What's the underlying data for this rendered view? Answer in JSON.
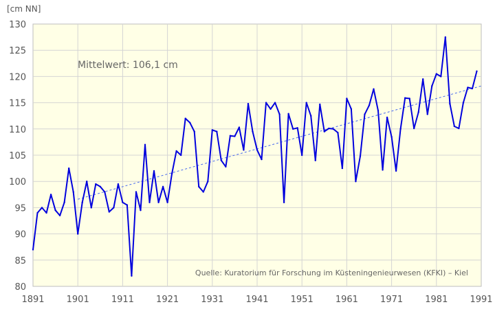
{
  "chart_data": {
    "type": "line",
    "unit_label": "[cm NN]",
    "annotation": "Mittelwert: 106,1 cm",
    "source": "Quelle: Kuratorium für Forschung im Küsteningenieurwesen (KFKI) – Kiel",
    "xlim": [
      1891,
      1991
    ],
    "ylim": [
      80,
      130
    ],
    "x_ticks": [
      1891,
      1901,
      1911,
      1921,
      1931,
      1941,
      1951,
      1961,
      1971,
      1981,
      1991
    ],
    "y_ticks": [
      80,
      85,
      90,
      95,
      100,
      105,
      110,
      115,
      120,
      125,
      130
    ],
    "grid": true,
    "colors": {
      "line": "#0000dd",
      "trend": "#4466ee",
      "plot_background": "#ffffe6",
      "grid": "#d4d4d4"
    },
    "series": [
      {
        "x": [
          1891,
          1892,
          1893,
          1894,
          1895,
          1896,
          1897,
          1898,
          1899,
          1900,
          1901,
          1902,
          1903,
          1904,
          1905,
          1906,
          1907,
          1908,
          1909,
          1910,
          1911,
          1912,
          1913,
          1914,
          1915,
          1916,
          1917,
          1918,
          1919,
          1920,
          1921,
          1922,
          1923,
          1924,
          1925,
          1926,
          1927,
          1928,
          1929,
          1930,
          1931,
          1932,
          1933,
          1934,
          1935,
          1936,
          1937,
          1938,
          1939,
          1940,
          1941,
          1942,
          1943,
          1944,
          1945,
          1946,
          1947,
          1948,
          1949,
          1950,
          1951,
          1952,
          1953,
          1954,
          1955,
          1956,
          1957,
          1958,
          1959,
          1960,
          1961,
          1962,
          1963,
          1964,
          1965,
          1966,
          1967,
          1968,
          1969,
          1970,
          1971,
          1972,
          1973,
          1974,
          1975,
          1976,
          1977,
          1978,
          1979,
          1980,
          1981,
          1982,
          1983,
          1984,
          1985,
          1986,
          1987,
          1988,
          1989,
          1990
        ],
        "values": [
          87,
          94,
          95,
          94,
          97.5,
          94.5,
          93.5,
          96,
          102.5,
          98,
          90,
          96,
          100,
          95,
          99.5,
          99,
          98,
          94.2,
          95,
          99.5,
          96,
          95.5,
          82,
          98,
          94.5,
          107,
          96,
          102,
          96,
          99,
          96,
          101.5,
          105.8,
          105,
          112,
          111.2,
          109.5,
          99,
          98,
          100,
          109.8,
          109.5,
          104,
          102.8,
          108.7,
          108.6,
          110.3,
          106,
          114.8,
          109.5,
          106,
          104.2,
          115,
          113.8,
          115,
          112.8,
          96,
          112.9,
          110,
          110.2,
          105,
          115,
          112.5,
          104,
          114.7,
          109.5,
          110.1,
          110,
          109.3,
          102.5,
          115.8,
          113.8,
          100,
          104.8,
          112.8,
          114.5,
          117.6,
          113.5,
          102.2,
          112.2,
          108.5,
          102,
          110,
          115.9,
          115.8,
          110.1,
          113.2,
          119.5,
          112.8,
          118.2,
          120.5,
          120,
          127.5,
          114.8,
          110.5,
          110.1,
          115,
          117.9,
          117.7,
          121
        ]
      }
    ],
    "trend": {
      "x": [
        1901,
        1991
      ],
      "values": [
        96.6,
        118.2
      ]
    }
  }
}
